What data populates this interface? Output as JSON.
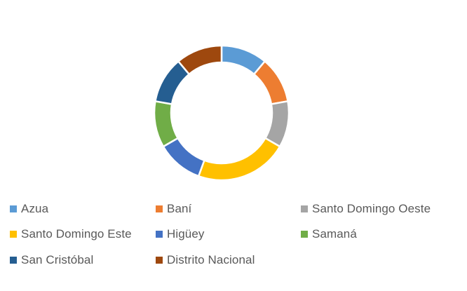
{
  "chart_data": {
    "type": "pie",
    "variant": "doughnut",
    "title": "",
    "legend_position": "bottom",
    "categories": [
      "Azua",
      "Baní",
      "Santo Domingo Oeste",
      "Santo Domingo Este",
      "Higüey",
      "Samaná",
      "San Cristóbal",
      "Distrito Nacional"
    ],
    "values": [
      1,
      1,
      1,
      2,
      1,
      1,
      1,
      1
    ],
    "colors": [
      "#5B9BD5",
      "#ED7D31",
      "#A5A5A5",
      "#FFC000",
      "#4472C4",
      "#70AD47",
      "#255E91",
      "#9E480E"
    ]
  }
}
